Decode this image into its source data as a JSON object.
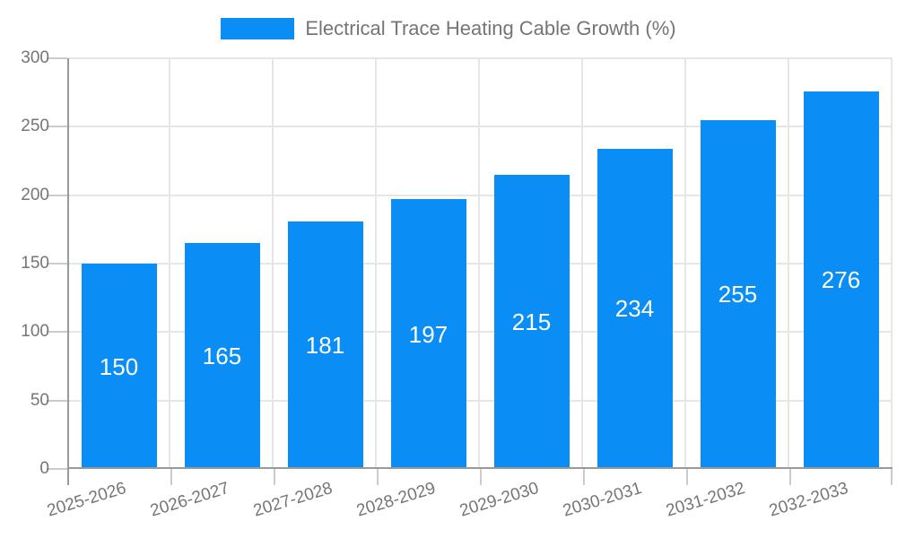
{
  "legend": {
    "label": "Electrical Trace Heating Cable Growth (%)",
    "position": "top-center"
  },
  "chart_data": {
    "type": "bar",
    "title": "",
    "series_name": "Electrical Trace Heating Cable Growth (%)",
    "categories": [
      "2025-2026",
      "2026-2027",
      "2027-2028",
      "2028-2029",
      "2029-2030",
      "2030-2031",
      "2031-2032",
      "2032-2033"
    ],
    "values": [
      150,
      165,
      181,
      197,
      215,
      234,
      255,
      276
    ],
    "value_labels": [
      "150",
      "165",
      "181",
      "197",
      "215",
      "234",
      "255",
      "276"
    ],
    "xlabel": "",
    "ylabel": "",
    "ylim": [
      0,
      300
    ],
    "yticks": [
      0,
      50,
      100,
      150,
      200,
      250,
      300
    ],
    "grid": "horizontal-and-vertical",
    "legend_position": "top",
    "x_label_rotation_deg": -17
  },
  "colors": {
    "bar": "#0a8df5",
    "bar_value_text": "#ffffff",
    "axis_line": "#999999",
    "gridline": "#e6e6e6",
    "tick": "#cccccc",
    "axis_text": "#757575",
    "legend_text": "#757575",
    "background": "#ffffff"
  }
}
